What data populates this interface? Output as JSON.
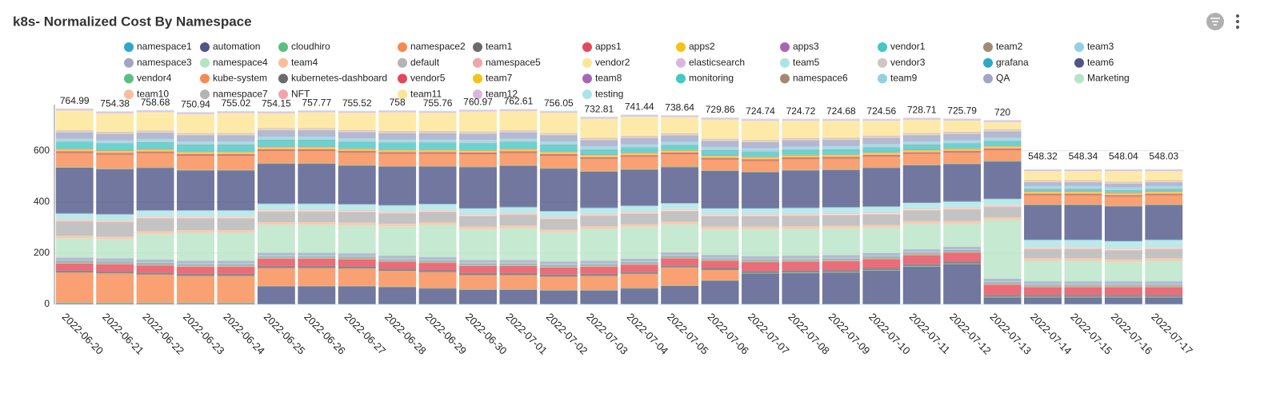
{
  "chart_data": {
    "type": "stacked_bar",
    "title": "k8s- Normalized Cost By Namespace",
    "categories": [
      "2022-06-20",
      "2022-06-21",
      "2022-06-22",
      "2022-06-23",
      "2022-06-24",
      "2022-06-25",
      "2022-06-26",
      "2022-06-27",
      "2022-06-28",
      "2022-06-29",
      "2022-06-30",
      "2022-07-01",
      "2022-07-02",
      "2022-07-03",
      "2022-07-04",
      "2022-07-05",
      "2022-07-06",
      "2022-07-07",
      "2022-07-08",
      "2022-07-09",
      "2022-07-10",
      "2022-07-11",
      "2022-07-12",
      "2022-07-13",
      "2022-07-14",
      "2022-07-15",
      "2022-07-16",
      "2022-07-17"
    ],
    "totals": [
      764.99,
      754.38,
      758.68,
      750.94,
      755.02,
      754.15,
      757.77,
      755.52,
      758,
      755.76,
      760.97,
      762.61,
      756.05,
      732.81,
      741.44,
      738.64,
      729.86,
      724.74,
      724.72,
      724.68,
      724.56,
      728.71,
      725.79,
      720,
      548.32,
      548.34,
      548.04,
      548.03
    ],
    "ylim": [
      0,
      780
    ],
    "yticks": [
      0,
      200,
      400,
      600
    ],
    "grid": true,
    "series": [
      {
        "name": "namespace1",
        "color": "#2ea8c9",
        "values": [
          2,
          2,
          2,
          2,
          2,
          2,
          2,
          2,
          2,
          2,
          2,
          2,
          2,
          2,
          2,
          2,
          2,
          2,
          2,
          2,
          2,
          2,
          2,
          2,
          2,
          2,
          2,
          2
        ]
      },
      {
        "name": "automation",
        "color": "#4f5587",
        "values": [
          2,
          2,
          2,
          2,
          2,
          68,
          68,
          68,
          65,
          60,
          55,
          55,
          52,
          52,
          60,
          70,
          90,
          118,
          120,
          122,
          130,
          145,
          155,
          25,
          25,
          25,
          25,
          25
        ]
      },
      {
        "name": "cloudhiro",
        "color": "#5bbf81",
        "values": [
          2,
          2,
          2,
          2,
          2,
          2,
          2,
          2,
          2,
          2,
          2,
          2,
          2,
          2,
          2,
          2,
          2,
          2,
          2,
          2,
          2,
          2,
          2,
          2,
          2,
          2,
          2,
          2
        ]
      },
      {
        "name": "namespace2",
        "color": "#f78a50",
        "values": [
          118,
          115,
          110,
          105,
          105,
          70,
          70,
          68,
          62,
          62,
          55,
          55,
          52,
          55,
          55,
          70,
          40,
          0,
          0,
          0,
          0,
          0,
          0,
          0,
          0,
          0,
          0,
          0
        ]
      },
      {
        "name": "team1",
        "color": "#6b6b6b",
        "values": [
          8,
          8,
          8,
          8,
          8,
          8,
          8,
          8,
          8,
          8,
          8,
          8,
          8,
          8,
          8,
          8,
          8,
          8,
          8,
          8,
          8,
          8,
          8,
          8,
          8,
          8,
          8,
          8
        ]
      },
      {
        "name": "apps1",
        "color": "#e5485a",
        "values": [
          28,
          28,
          28,
          28,
          28,
          28,
          28,
          28,
          28,
          28,
          28,
          28,
          28,
          28,
          28,
          28,
          28,
          35,
          35,
          35,
          35,
          35,
          35,
          40,
          30,
          30,
          30,
          30
        ]
      },
      {
        "name": "apps2",
        "color": "#f5c318",
        "values": [
          2,
          2,
          2,
          2,
          2,
          2,
          2,
          2,
          2,
          2,
          2,
          2,
          2,
          2,
          2,
          2,
          2,
          2,
          2,
          2,
          2,
          2,
          2,
          2,
          2,
          2,
          2,
          2
        ]
      },
      {
        "name": "apps3",
        "color": "#a865b6",
        "values": [
          2,
          2,
          2,
          2,
          2,
          2,
          2,
          2,
          2,
          2,
          2,
          2,
          2,
          2,
          2,
          2,
          2,
          2,
          2,
          2,
          2,
          2,
          2,
          2,
          2,
          2,
          2,
          2
        ]
      },
      {
        "name": "vendor1",
        "color": "#42c8c6",
        "values": [
          3,
          3,
          3,
          3,
          3,
          3,
          3,
          3,
          3,
          3,
          3,
          3,
          3,
          3,
          3,
          3,
          3,
          3,
          3,
          3,
          3,
          3,
          3,
          3,
          3,
          3,
          3,
          3
        ]
      },
      {
        "name": "team2",
        "color": "#a08b72",
        "values": [
          3,
          3,
          3,
          3,
          3,
          3,
          3,
          3,
          3,
          3,
          3,
          3,
          3,
          3,
          3,
          3,
          3,
          3,
          3,
          3,
          3,
          3,
          3,
          3,
          3,
          3,
          3,
          3
        ]
      },
      {
        "name": "team3",
        "color": "#90d2e2",
        "values": [
          3,
          3,
          3,
          3,
          3,
          3,
          3,
          3,
          3,
          3,
          3,
          3,
          3,
          3,
          3,
          3,
          3,
          3,
          3,
          3,
          3,
          3,
          3,
          3,
          3,
          3,
          3,
          3
        ]
      },
      {
        "name": "namespace3",
        "color": "#a2a6c6",
        "values": [
          10,
          10,
          10,
          10,
          10,
          10,
          10,
          10,
          10,
          10,
          10,
          10,
          10,
          10,
          10,
          10,
          10,
          10,
          10,
          10,
          10,
          10,
          10,
          10,
          10,
          10,
          10,
          10
        ]
      },
      {
        "name": "namespace4",
        "color": "#b6e4c6",
        "values": [
          75,
          75,
          100,
          110,
          110,
          110,
          110,
          110,
          115,
          125,
          120,
          125,
          115,
          125,
          125,
          110,
          100,
          105,
          105,
          105,
          100,
          100,
          90,
          230,
          80,
          80,
          75,
          80
        ]
      },
      {
        "name": "team4",
        "color": "#f9bd9c",
        "values": [
          10,
          10,
          10,
          10,
          10,
          10,
          10,
          10,
          10,
          10,
          10,
          10,
          10,
          10,
          10,
          10,
          10,
          10,
          10,
          10,
          10,
          10,
          10,
          10,
          10,
          10,
          10,
          10
        ]
      },
      {
        "name": "default",
        "color": "#b4b4b4",
        "values": [
          55,
          55,
          50,
          45,
          45,
          40,
          40,
          40,
          40,
          40,
          40,
          40,
          40,
          40,
          40,
          40,
          40,
          40,
          40,
          40,
          40,
          40,
          45,
          40,
          35,
          35,
          35,
          35
        ]
      },
      {
        "name": "namespace5",
        "color": "#f0a5ae",
        "values": [
          3,
          3,
          3,
          3,
          3,
          3,
          3,
          3,
          3,
          3,
          3,
          3,
          3,
          3,
          3,
          3,
          3,
          3,
          3,
          3,
          3,
          3,
          3,
          3,
          3,
          3,
          3,
          3
        ]
      },
      {
        "name": "vendor2",
        "color": "#fde594",
        "values": [
          3,
          3,
          3,
          3,
          3,
          3,
          3,
          3,
          3,
          3,
          3,
          3,
          3,
          3,
          3,
          3,
          3,
          3,
          3,
          3,
          3,
          3,
          3,
          3,
          3,
          3,
          3,
          3
        ]
      },
      {
        "name": "elasticsearch",
        "color": "#d9b6e0",
        "values": [
          3,
          3,
          3,
          3,
          3,
          3,
          3,
          3,
          3,
          3,
          3,
          3,
          3,
          3,
          3,
          3,
          3,
          3,
          3,
          3,
          3,
          3,
          3,
          3,
          3,
          3,
          3,
          3
        ]
      },
      {
        "name": "team5",
        "color": "#a9e5e6",
        "values": [
          20,
          20,
          20,
          20,
          20,
          20,
          20,
          20,
          20,
          20,
          20,
          20,
          20,
          20,
          20,
          20,
          20,
          20,
          20,
          20,
          20,
          20,
          20,
          20,
          25,
          25,
          25,
          25
        ]
      },
      {
        "name": "vendor3",
        "color": "#cec6bf",
        "values": [
          2,
          2,
          2,
          2,
          2,
          2,
          2,
          2,
          2,
          2,
          2,
          2,
          2,
          2,
          2,
          2,
          2,
          2,
          2,
          2,
          2,
          2,
          2,
          2,
          2,
          2,
          2,
          2
        ]
      },
      {
        "name": "grafana",
        "color": "#2ea8c9",
        "values": [
          2,
          2,
          2,
          2,
          2,
          2,
          2,
          2,
          2,
          2,
          2,
          2,
          2,
          2,
          2,
          2,
          2,
          2,
          2,
          2,
          2,
          2,
          2,
          2,
          2,
          2,
          2,
          2
        ]
      },
      {
        "name": "team6",
        "color": "#4f5587",
        "values": [
          178,
          175,
          165,
          155,
          155,
          155,
          155,
          150,
          150,
          145,
          160,
          160,
          165,
          140,
          140,
          140,
          145,
          140,
          145,
          145,
          150,
          145,
          145,
          145,
          135,
          135,
          135,
          135
        ]
      },
      {
        "name": "vendor4",
        "color": "#5bbf81",
        "values": [
          2,
          2,
          2,
          2,
          2,
          2,
          2,
          2,
          2,
          2,
          2,
          2,
          2,
          2,
          2,
          2,
          2,
          2,
          2,
          2,
          2,
          2,
          2,
          2,
          2,
          2,
          2,
          2
        ]
      },
      {
        "name": "kube-system",
        "color": "#f78a50",
        "values": [
          55,
          55,
          55,
          55,
          55,
          48,
          48,
          48,
          48,
          48,
          48,
          48,
          48,
          48,
          48,
          48,
          42,
          42,
          42,
          42,
          42,
          42,
          42,
          42,
          35,
          35,
          35,
          35
        ]
      },
      {
        "name": "kubernetes-dashboard",
        "color": "#6b6b6b",
        "values": [
          2,
          2,
          2,
          2,
          2,
          2,
          2,
          2,
          2,
          2,
          2,
          2,
          2,
          2,
          2,
          2,
          2,
          2,
          2,
          2,
          2,
          2,
          2,
          2,
          2,
          2,
          2,
          2
        ]
      },
      {
        "name": "vendor5",
        "color": "#e5485a",
        "values": [
          5,
          5,
          5,
          5,
          5,
          5,
          5,
          5,
          5,
          5,
          5,
          5,
          5,
          5,
          5,
          5,
          5,
          5,
          5,
          5,
          5,
          5,
          5,
          5,
          5,
          5,
          5,
          5
        ]
      },
      {
        "name": "team7",
        "color": "#f5c318",
        "values": [
          8,
          8,
          8,
          8,
          8,
          8,
          8,
          8,
          8,
          8,
          8,
          8,
          8,
          8,
          8,
          8,
          8,
          8,
          8,
          8,
          8,
          8,
          8,
          8,
          8,
          8,
          8,
          8
        ]
      },
      {
        "name": "team8",
        "color": "#a865b6",
        "values": [
          2,
          2,
          2,
          2,
          2,
          2,
          2,
          2,
          2,
          2,
          2,
          2,
          2,
          2,
          2,
          2,
          2,
          2,
          2,
          2,
          2,
          2,
          2,
          2,
          2,
          2,
          2,
          2
        ]
      },
      {
        "name": "monitoring",
        "color": "#42c8c6",
        "values": [
          25,
          25,
          25,
          25,
          25,
          25,
          25,
          25,
          25,
          25,
          25,
          25,
          25,
          18,
          18,
          18,
          18,
          18,
          18,
          18,
          18,
          18,
          18,
          18,
          8,
          8,
          8,
          8
        ]
      },
      {
        "name": "namespace6",
        "color": "#a08b72",
        "values": [
          2,
          2,
          2,
          2,
          2,
          2,
          2,
          2,
          2,
          2,
          2,
          2,
          2,
          2,
          2,
          2,
          2,
          2,
          2,
          2,
          2,
          2,
          2,
          2,
          2,
          2,
          2,
          2
        ]
      },
      {
        "name": "team9",
        "color": "#90d2e2",
        "values": [
          12,
          12,
          12,
          12,
          12,
          12,
          12,
          12,
          12,
          12,
          12,
          12,
          12,
          12,
          12,
          12,
          12,
          12,
          12,
          12,
          12,
          12,
          12,
          12,
          10,
          10,
          10,
          10
        ]
      },
      {
        "name": "QA",
        "color": "#a2a6c6",
        "values": [
          25,
          25,
          25,
          25,
          25,
          25,
          25,
          25,
          25,
          25,
          25,
          25,
          25,
          25,
          25,
          25,
          25,
          25,
          25,
          25,
          25,
          25,
          25,
          25,
          15,
          15,
          15,
          15
        ]
      },
      {
        "name": "Marketing",
        "color": "#b6e4c6",
        "values": [
          2,
          2,
          2,
          2,
          2,
          2,
          2,
          2,
          2,
          2,
          2,
          2,
          2,
          2,
          2,
          2,
          2,
          2,
          2,
          2,
          2,
          2,
          2,
          2,
          2,
          2,
          2,
          2
        ]
      },
      {
        "name": "team10",
        "color": "#f9bd9c",
        "values": [
          2,
          2,
          2,
          2,
          2,
          2,
          2,
          2,
          2,
          2,
          2,
          2,
          2,
          2,
          2,
          2,
          2,
          2,
          2,
          2,
          2,
          2,
          2,
          2,
          2,
          2,
          2,
          2
        ]
      },
      {
        "name": "namespace7",
        "color": "#b4b4b4",
        "values": [
          2,
          2,
          2,
          2,
          2,
          2,
          2,
          2,
          2,
          2,
          2,
          2,
          2,
          2,
          2,
          2,
          2,
          2,
          2,
          2,
          2,
          2,
          2,
          2,
          2,
          2,
          2,
          2
        ]
      },
      {
        "name": "NFT",
        "color": "#f0a5ae",
        "values": [
          2,
          2,
          2,
          2,
          2,
          2,
          2,
          2,
          2,
          2,
          2,
          2,
          2,
          2,
          2,
          2,
          2,
          2,
          2,
          2,
          2,
          2,
          2,
          2,
          2,
          2,
          2,
          2
        ]
      },
      {
        "name": "team11",
        "color": "#fde594",
        "values": [
          77,
          72,
          72,
          74,
          78,
          58,
          62,
          67,
          73,
          71,
          78,
          75,
          79,
          75,
          75,
          63,
          75,
          75,
          68,
          66,
          58,
          52,
          44,
          28,
          35,
          35,
          40,
          35
        ]
      },
      {
        "name": "team12",
        "color": "#d9b6e0",
        "values": [
          6,
          6,
          6,
          6,
          6,
          6,
          6,
          6,
          6,
          6,
          6,
          6,
          6,
          6,
          6,
          6,
          6,
          6,
          6,
          6,
          6,
          6,
          6,
          6,
          6,
          6,
          6,
          6
        ]
      },
      {
        "name": "testing",
        "color": "#a9e5e6",
        "values": [
          2,
          2,
          2,
          2,
          2,
          2,
          2,
          2,
          2,
          2,
          2,
          2,
          2,
          2,
          2,
          2,
          2,
          2,
          2,
          2,
          2,
          2,
          2,
          2,
          2,
          2,
          2,
          2
        ]
      }
    ]
  }
}
